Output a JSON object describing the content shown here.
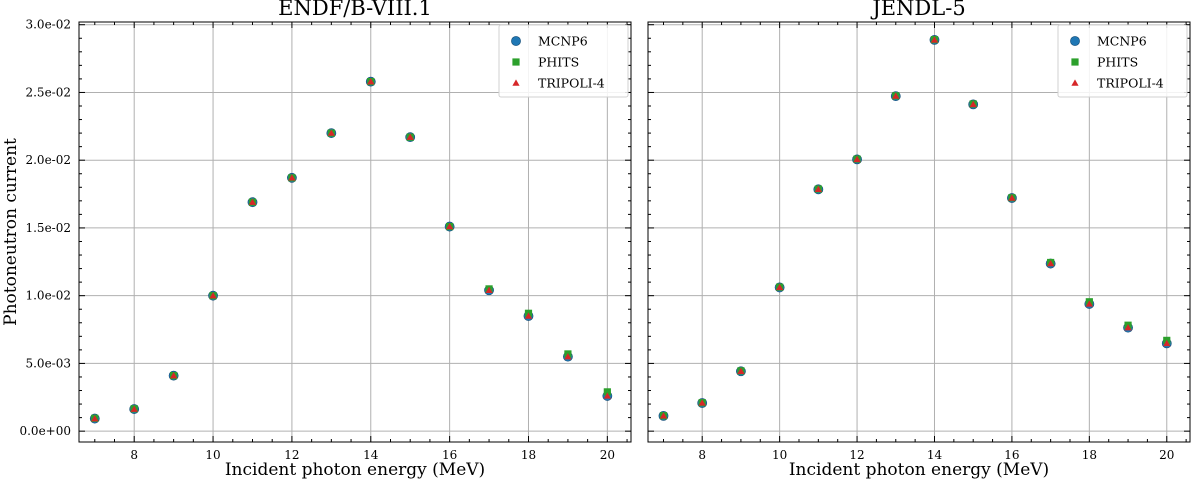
{
  "chart_data": [
    {
      "type": "scatter",
      "title": "ENDF/B-VIII.1",
      "xlabel": "Incident photon energy (MeV)",
      "ylabel": "Photoneutron current",
      "xlim": [
        6.6,
        20.6
      ],
      "ylim": [
        -0.0008,
        0.0302
      ],
      "xticks": [
        8,
        10,
        12,
        14,
        16,
        18,
        20
      ],
      "xtick_labels": [
        "8",
        "10",
        "12",
        "14",
        "16",
        "18",
        "20"
      ],
      "yticks": [
        0,
        0.005,
        0.01,
        0.015,
        0.02,
        0.025,
        0.03
      ],
      "ytick_labels": [
        "0.0e+00",
        "5.0e-03",
        "1.0e-02",
        "1.5e-02",
        "2.0e-02",
        "2.5e-02",
        "3.0e-02"
      ],
      "grid": true,
      "legend_position": "top-right",
      "x": [
        7,
        8,
        9,
        10,
        11,
        12,
        13,
        14,
        15,
        16,
        17,
        18,
        19,
        20
      ],
      "series": [
        {
          "name": "MCNP6",
          "marker": "circle",
          "color": "#1f77b4",
          "values": [
            0.00093,
            0.00163,
            0.0041,
            0.01,
            0.0169,
            0.0187,
            0.022,
            0.0258,
            0.0217,
            0.0151,
            0.0104,
            0.0085,
            0.0055,
            0.0026
          ]
        },
        {
          "name": "PHITS",
          "marker": "square",
          "color": "#2ca02c",
          "values": [
            0.00095,
            0.00165,
            0.0041,
            0.01,
            0.0169,
            0.0187,
            0.022,
            0.0258,
            0.0217,
            0.0151,
            0.0105,
            0.0087,
            0.0057,
            0.0029
          ]
        },
        {
          "name": "TRIPOLI-4",
          "marker": "triangle",
          "color": "#d62728",
          "values": [
            0.00092,
            0.00162,
            0.0041,
            0.01,
            0.0169,
            0.0187,
            0.022,
            0.0258,
            0.0217,
            0.0151,
            0.0104,
            0.0085,
            0.0055,
            0.0026
          ]
        }
      ]
    },
    {
      "type": "scatter",
      "title": "JENDL-5",
      "xlabel": "Incident photon energy (MeV)",
      "ylabel": "",
      "xlim": [
        6.6,
        20.6
      ],
      "ylim": [
        -0.0008,
        0.0302
      ],
      "xticks": [
        8,
        10,
        12,
        14,
        16,
        18,
        20
      ],
      "xtick_labels": [
        "8",
        "10",
        "12",
        "14",
        "16",
        "18",
        "20"
      ],
      "yticks": [
        0,
        0.005,
        0.01,
        0.015,
        0.02,
        0.025,
        0.03
      ],
      "ytick_labels": [],
      "grid": true,
      "legend_position": "top-right",
      "x": [
        7,
        8,
        9,
        10,
        11,
        12,
        13,
        14,
        15,
        16,
        17,
        18,
        19,
        20
      ],
      "series": [
        {
          "name": "MCNP6",
          "marker": "circle",
          "color": "#1f77b4",
          "values": [
            0.00113,
            0.00208,
            0.00442,
            0.01061,
            0.01785,
            0.02006,
            0.02473,
            0.02888,
            0.02412,
            0.01721,
            0.01237,
            0.00939,
            0.00764,
            0.00648
          ]
        },
        {
          "name": "PHITS",
          "marker": "square",
          "color": "#2ca02c",
          "values": [
            0.00114,
            0.0021,
            0.00445,
            0.01063,
            0.01787,
            0.02008,
            0.02475,
            0.0289,
            0.02415,
            0.01723,
            0.01245,
            0.00955,
            0.00782,
            0.0067
          ]
        },
        {
          "name": "TRIPOLI-4",
          "marker": "triangle",
          "color": "#d62728",
          "values": [
            0.00113,
            0.00208,
            0.00442,
            0.01061,
            0.01785,
            0.02006,
            0.02473,
            0.02888,
            0.02412,
            0.01721,
            0.01237,
            0.00939,
            0.00764,
            0.00648
          ]
        }
      ]
    }
  ]
}
